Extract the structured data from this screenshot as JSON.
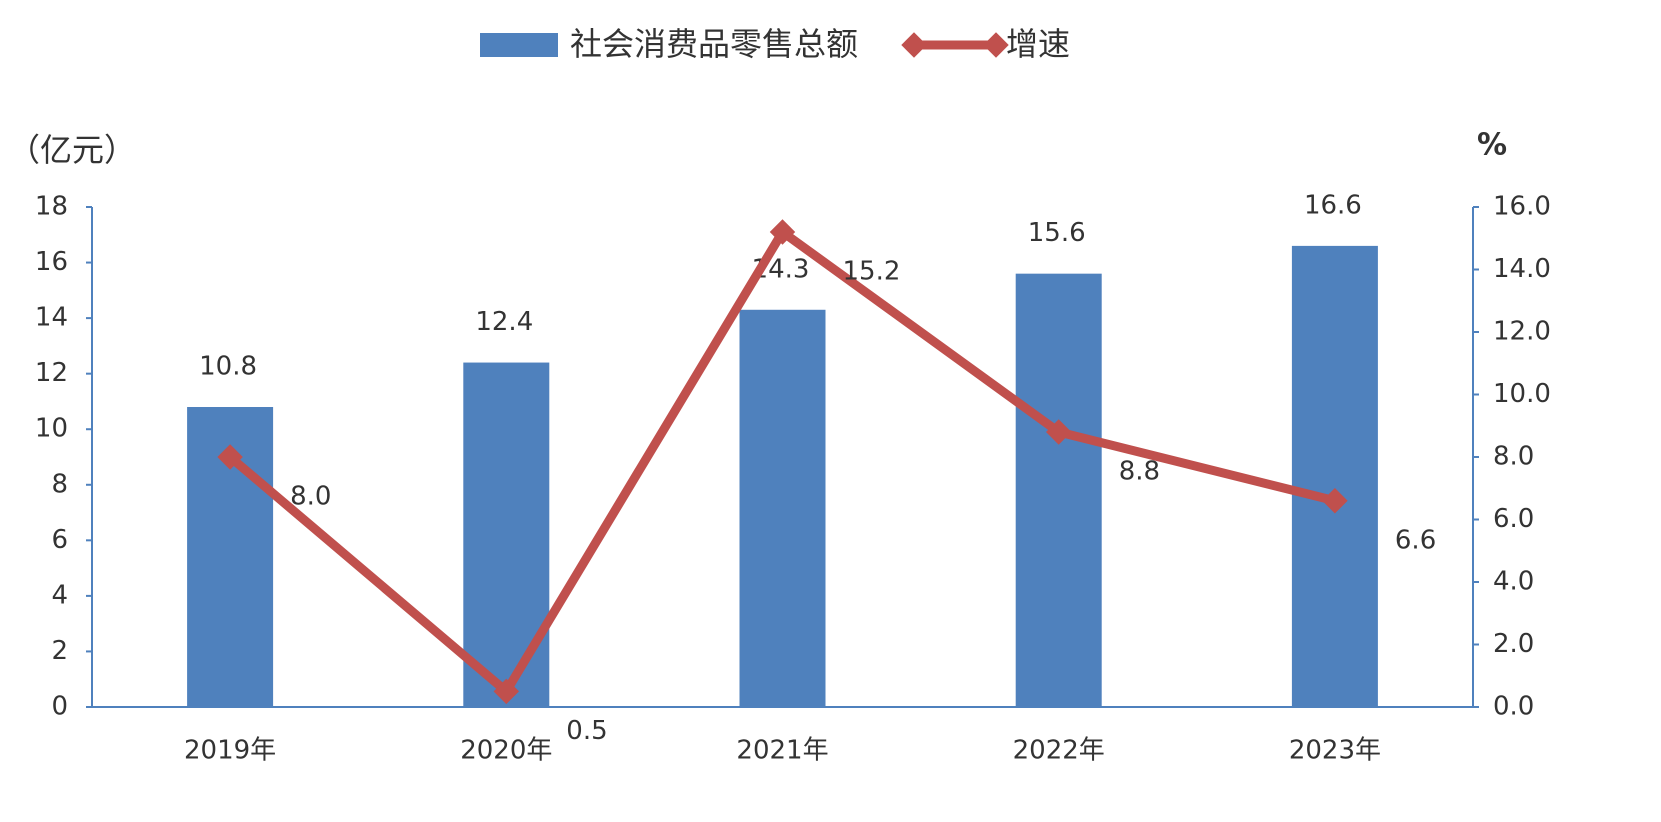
{
  "chart_data": {
    "type": "bar_line",
    "y_label": "（亿元）",
    "y2_label": "%",
    "categories": [
      "2019年",
      "2020年",
      "2021年",
      "2022年",
      "2023年"
    ],
    "series": [
      {
        "name": "社会消费品零售总额",
        "type": "bar",
        "color": "#4f81bd",
        "values": [
          10.8,
          12.4,
          14.3,
          15.6,
          16.6
        ]
      },
      {
        "name": "增速",
        "type": "line",
        "axis": "y2",
        "color": "#c0504d",
        "values": [
          8.0,
          0.5,
          15.2,
          8.8,
          6.6
        ],
        "value_labels": [
          "8.0",
          "0.5",
          "15.2",
          "8.8",
          "6.6"
        ]
      }
    ],
    "ylim": [
      0,
      18
    ],
    "yticks": [
      0,
      2,
      4,
      6,
      8,
      10,
      12,
      14,
      16,
      18
    ],
    "y2lim": [
      0,
      16
    ],
    "y2ticks": [
      {
        "value": 0,
        "label": "0.0"
      },
      {
        "value": 2,
        "label": "2.0"
      },
      {
        "value": 4,
        "label": "4.0"
      },
      {
        "value": 6,
        "label": "6.0"
      },
      {
        "value": 8,
        "label": "8.0"
      },
      {
        "value": 10,
        "label": "10.0"
      },
      {
        "value": 12,
        "label": "12.0"
      },
      {
        "value": 14,
        "label": "14.0"
      },
      {
        "value": 16,
        "label": "16.0"
      }
    ]
  }
}
